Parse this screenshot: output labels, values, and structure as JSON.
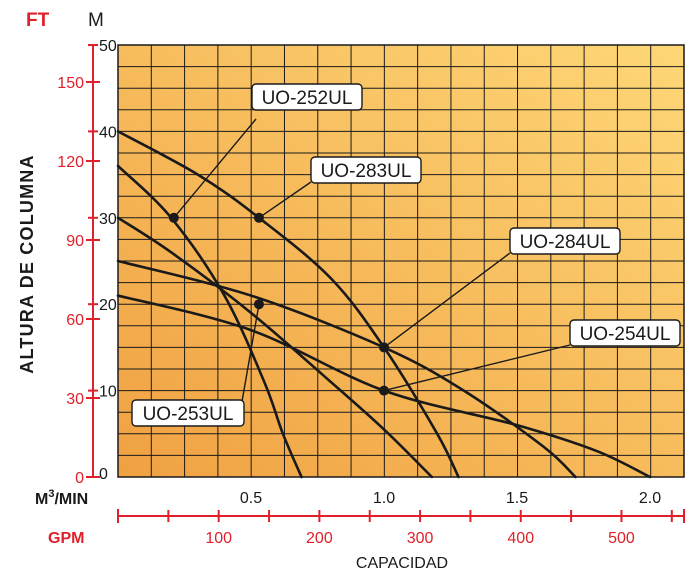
{
  "chart_data": {
    "type": "line",
    "ylabel": "ALTURA DE COLUMNA",
    "xlabel": "CAPACIDAD",
    "y_units": {
      "ft": "FT",
      "m": "M"
    },
    "x_units": {
      "m3min": "M3/MIN",
      "gpm": "GPM"
    },
    "ylim_m": [
      0,
      50
    ],
    "xlim_m3min": [
      0,
      2.2
    ],
    "y_ticks_m": [
      "0",
      "10",
      "20",
      "30",
      "40",
      "50"
    ],
    "y_ticks_ft": [
      "0",
      "30",
      "60",
      "90",
      "120",
      "150"
    ],
    "x_ticks_m3min": [
      "0.5",
      "1.0",
      "1.5",
      "2.0"
    ],
    "x_ticks_gpm": [
      "100",
      "200",
      "300",
      "400",
      "500"
    ],
    "grid": true,
    "series": [
      {
        "name": "UO-252UL",
        "x": [
          0,
          0.2,
          0.4,
          0.55,
          0.62,
          0.69
        ],
        "y": [
          36,
          30,
          21,
          11,
          5,
          0
        ],
        "marker": {
          "x": 0.21,
          "y": 30
        }
      },
      {
        "name": "UO-253UL",
        "x": [
          0,
          0.2,
          0.5,
          0.8,
          1.0,
          1.18
        ],
        "y": [
          30,
          26,
          19,
          11,
          5.5,
          0
        ],
        "marker": {
          "x": 0.53,
          "y": 20
        }
      },
      {
        "name": "UO-283UL",
        "x": [
          0,
          0.3,
          0.53,
          0.8,
          1.0,
          1.2,
          1.28
        ],
        "y": [
          40,
          35,
          30,
          23,
          15,
          5,
          0
        ],
        "marker": {
          "x": 0.53,
          "y": 30
        }
      },
      {
        "name": "UO-284UL",
        "x": [
          0,
          0.5,
          1.0,
          1.3,
          1.6,
          1.72
        ],
        "y": [
          25,
          21,
          15,
          10,
          3.5,
          0
        ],
        "marker": {
          "x": 1.0,
          "y": 15
        }
      },
      {
        "name": "UO-254UL",
        "x": [
          0,
          0.5,
          1.0,
          1.5,
          1.8,
          2.0
        ],
        "y": [
          21,
          17,
          10,
          6,
          3,
          0
        ],
        "marker": {
          "x": 1.0,
          "y": 10
        }
      }
    ]
  },
  "colors": {
    "grad_a": "#f0a142",
    "grad_b": "#fed777",
    "accent_red": "#e0202a",
    "line": "#1a1a1a"
  }
}
